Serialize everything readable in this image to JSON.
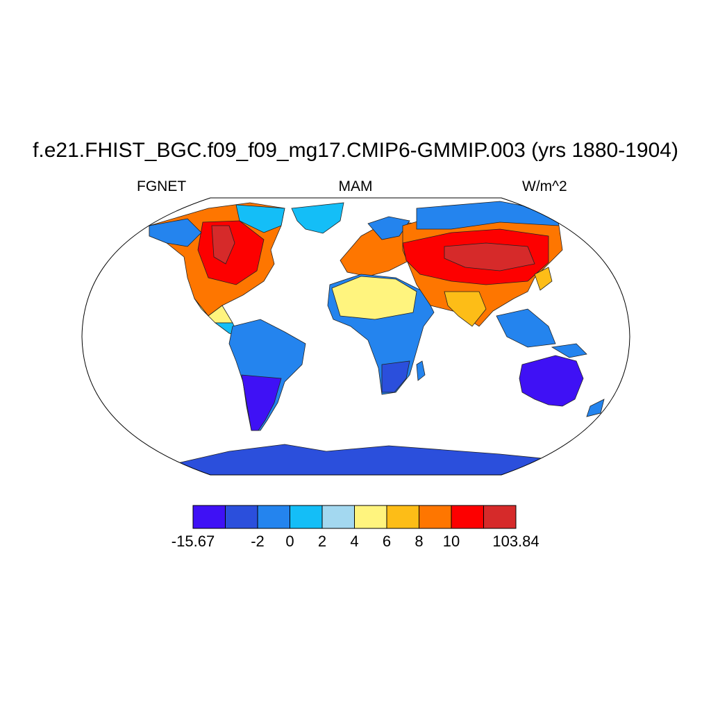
{
  "figure": {
    "title": "f.e21.FHIST_BGC.f09_f09_mg17.CMIP6-GMMIP.003 (yrs 1880-1904)",
    "left_label": "FGNET",
    "center_label": "MAM",
    "right_label": "W/m^2",
    "projection": "Robinson",
    "colorbar": {
      "colors": [
        "#3f11f5",
        "#2b4fdc",
        "#2484ee",
        "#14bef7",
        "#a3d8f0",
        "#fff47e",
        "#fdbd17",
        "#fe7600",
        "#fd0000",
        "#d62a2a"
      ],
      "labels": [
        "-15.67",
        "-2",
        "0",
        "2",
        "4",
        "6",
        "8",
        "10",
        "103.84"
      ]
    }
  }
}
